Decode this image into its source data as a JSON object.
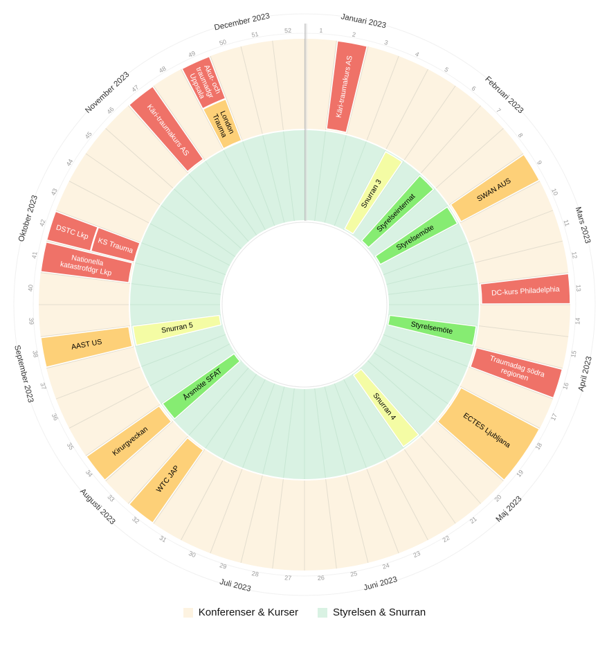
{
  "year": 2023,
  "colors": {
    "konferens_bg": "#fdf3e1",
    "styrelse_bg": "#d9f2e3",
    "event_red": "#ef7268",
    "event_orange": "#fdd078",
    "event_yellow": "#f4fca4",
    "event_green": "#86ec72",
    "divider": "#ffffff",
    "week_line": "#e3ddce"
  },
  "month_labels": [
    "Januari 2023",
    "Februari 2023",
    "Mars 2023",
    "April 2023",
    "Maj 2023",
    "Juni 2023",
    "Juli 2023",
    "Augusti 2023",
    "September 2023",
    "Oktober 2023",
    "November 2023",
    "December 2023"
  ],
  "month_week_positions": [
    2.7,
    7.3,
    11.7,
    16.0,
    20.5,
    24.8,
    29.0,
    33.6,
    38.0,
    42.5,
    46.8,
    51.2
  ],
  "week_labels": [
    "1",
    "2",
    "3",
    "4",
    "5",
    "6",
    "7",
    "8",
    "9",
    "10",
    "11",
    "12",
    "13",
    "14",
    "15",
    "16",
    "17",
    "18",
    "19",
    "20",
    "21",
    "22",
    "23",
    "24",
    "25",
    "26",
    "27",
    "28",
    "29",
    "30",
    "31",
    "32",
    "33",
    "34",
    "35",
    "36",
    "37",
    "38",
    "39",
    "40",
    "41",
    "42",
    "43",
    "44",
    "45",
    "46",
    "47",
    "48",
    "49",
    "50",
    "51",
    "52"
  ],
  "outer_events": [
    {
      "label": "Käri-traumakurs AS",
      "start": 2,
      "end": 2,
      "color": "red",
      "text_color": "#ffffff"
    },
    {
      "label": "SWAN AUS",
      "start": 9,
      "end": 9,
      "color": "orange",
      "text_color": "#000000"
    },
    {
      "label": "DC-kurs Philadelphia",
      "start": 13,
      "end": 13,
      "color": "red",
      "text_color": "#ffffff"
    },
    {
      "label": "Traumadag södra regionen",
      "start": 16,
      "end": 16,
      "color": "red",
      "text_color": "#ffffff"
    },
    {
      "label": "ECTES Ljubljana",
      "start": 18,
      "end": 19,
      "color": "orange",
      "text_color": "#000000"
    },
    {
      "label": "WTC JAP",
      "start": 32,
      "end": 32,
      "color": "orange",
      "text_color": "#000000"
    },
    {
      "label": "Kirurgveckan",
      "start": 34,
      "end": 34,
      "color": "orange",
      "text_color": "#000000"
    },
    {
      "label": "AAST US",
      "start": 38,
      "end": 38,
      "color": "orange",
      "text_color": "#000000"
    },
    {
      "label": "Nationella katastrofdgr Lkp",
      "start": 41,
      "end": 41,
      "color": "red",
      "text_color": "#ffffff"
    },
    {
      "label": "DSTC Lkp",
      "start": 42,
      "end": 42,
      "color": "red",
      "text_color": "#ffffff",
      "lane": "outer"
    },
    {
      "label": "KS Trauma",
      "start": 42,
      "end": 42,
      "color": "red",
      "text_color": "#ffffff",
      "lane": "inner"
    },
    {
      "label": "Käri-traumakurs AS",
      "start": 47,
      "end": 47,
      "color": "red",
      "text_color": "#ffffff"
    },
    {
      "label": "Akut- och traumadgr Uppsala",
      "start": 49,
      "end": 49,
      "color": "red",
      "text_color": "#ffffff",
      "lane": "outer"
    },
    {
      "label": "London Trauma",
      "start": 49,
      "end": 49,
      "color": "orange",
      "text_color": "#000000",
      "lane": "inner"
    }
  ],
  "inner_events": [
    {
      "label": "Snurran 3",
      "start": 5,
      "end": 5,
      "color": "yellow"
    },
    {
      "label": "Styrelseinternat",
      "start": 7,
      "end": 7,
      "color": "green"
    },
    {
      "label": "Styrelsemöte",
      "start": 9,
      "end": 9,
      "color": "green"
    },
    {
      "label": "Styrelsemöte",
      "start": 15,
      "end": 15,
      "color": "green"
    },
    {
      "label": "Snurran 4",
      "start": 21,
      "end": 21,
      "color": "yellow"
    },
    {
      "label": "Årsmöte SFAT",
      "start": 34,
      "end": 34,
      "color": "green"
    },
    {
      "label": "Snurran 5",
      "start": 38,
      "end": 38,
      "color": "yellow"
    }
  ],
  "legend": [
    {
      "label": "Konferenser & Kurser",
      "color": "#fdf3e1"
    },
    {
      "label": "Styrelsen &  Snurran",
      "color": "#d9f2e3"
    }
  ]
}
